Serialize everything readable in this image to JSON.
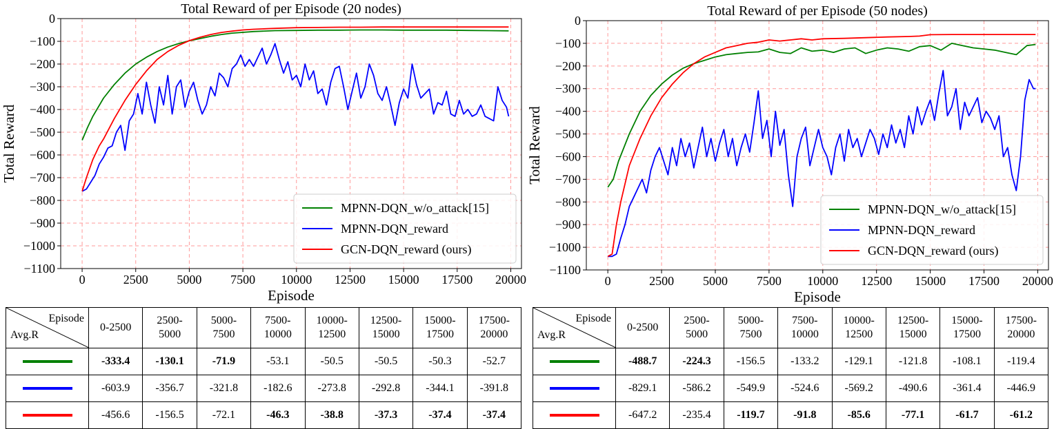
{
  "chart_data": [
    {
      "type": "line",
      "title": "Total Reward of per Episode (20 nodes)",
      "xlabel": "Episode",
      "ylabel": "Total Reward",
      "xlim": [
        -1000,
        20500
      ],
      "ylim": [
        -1100,
        0
      ],
      "xticks": [
        0,
        2500,
        5000,
        7500,
        10000,
        12500,
        15000,
        17500,
        20000
      ],
      "yticks": [
        0,
        -100,
        -200,
        -300,
        -400,
        -500,
        -600,
        -700,
        -800,
        -900,
        -1000,
        -1100
      ],
      "grid": true,
      "legend_position": "lower-right",
      "legend": [
        "MPNN-DQN_w/o_attack[15]",
        "MPNN-DQN_reward",
        "GCN-DQN_reward (ours)"
      ],
      "series": [
        {
          "name": "MPNN-DQN_w/o_attack[15]",
          "color": "#008000",
          "x": [
            0,
            250,
            500,
            1000,
            1500,
            2000,
            2500,
            3000,
            3500,
            4000,
            4500,
            5000,
            5500,
            6000,
            6500,
            7000,
            8000,
            9000,
            10000,
            11000,
            12000,
            13000,
            14000,
            15000,
            16000,
            17000,
            18000,
            19000,
            19900
          ],
          "y": [
            -535,
            -480,
            -430,
            -350,
            -290,
            -240,
            -200,
            -170,
            -145,
            -125,
            -110,
            -98,
            -88,
            -78,
            -70,
            -64,
            -57,
            -53,
            -52,
            -51,
            -51,
            -50,
            -50,
            -51,
            -51,
            -51,
            -52,
            -53,
            -54
          ]
        },
        {
          "name": "MPNN-DQN_reward",
          "color": "#0000ff",
          "x": [
            0,
            200,
            400,
            600,
            800,
            1000,
            1200,
            1400,
            1600,
            1800,
            2000,
            2200,
            2400,
            2600,
            2800,
            3000,
            3200,
            3400,
            3600,
            3800,
            4000,
            4200,
            4400,
            4600,
            4800,
            5000,
            5200,
            5400,
            5600,
            5800,
            6000,
            6200,
            6400,
            6600,
            6800,
            7000,
            7200,
            7400,
            7600,
            7800,
            8000,
            8200,
            8400,
            8600,
            8800,
            9000,
            9200,
            9400,
            9600,
            9800,
            10000,
            10200,
            10400,
            10600,
            10800,
            11000,
            11200,
            11400,
            11600,
            11800,
            12000,
            12200,
            12400,
            12600,
            12800,
            13000,
            13200,
            13400,
            13600,
            13800,
            14000,
            14200,
            14400,
            14600,
            14800,
            15000,
            15200,
            15400,
            15600,
            15800,
            16000,
            16200,
            16400,
            16600,
            16800,
            17000,
            17200,
            17400,
            17600,
            17800,
            18000,
            18200,
            18400,
            18600,
            18800,
            19000,
            19200,
            19400,
            19600,
            19800,
            19900
          ],
          "y": [
            -760,
            -750,
            -720,
            -690,
            -640,
            -610,
            -570,
            -560,
            -500,
            -470,
            -580,
            -450,
            -420,
            -330,
            -420,
            -280,
            -380,
            -460,
            -300,
            -380,
            -250,
            -420,
            -300,
            -270,
            -390,
            -320,
            -280,
            -360,
            -420,
            -380,
            -300,
            -340,
            -240,
            -260,
            -300,
            -220,
            -200,
            -160,
            -210,
            -180,
            -210,
            -170,
            -130,
            -200,
            -160,
            -110,
            -180,
            -240,
            -190,
            -270,
            -250,
            -300,
            -200,
            -270,
            -230,
            -330,
            -310,
            -380,
            -280,
            -220,
            -210,
            -300,
            -400,
            -320,
            -240,
            -350,
            -300,
            -200,
            -250,
            -330,
            -360,
            -300,
            -380,
            -470,
            -370,
            -310,
            -350,
            -200,
            -290,
            -350,
            -330,
            -310,
            -420,
            -370,
            -380,
            -320,
            -420,
            -430,
            -360,
            -420,
            -400,
            -430,
            -420,
            -380,
            -430,
            -440,
            -450,
            -300,
            -360,
            -390,
            -430
          ]
        },
        {
          "name": "GCN-DQN_reward (ours)",
          "color": "#ff0000",
          "x": [
            0,
            200,
            500,
            800,
            1000,
            1500,
            2000,
            2500,
            3000,
            3500,
            4000,
            4500,
            5000,
            5500,
            6000,
            6500,
            7000,
            7500,
            8000,
            9000,
            10000,
            11000,
            12000,
            13000,
            14000,
            15000,
            16000,
            17000,
            18000,
            19000,
            19900
          ],
          "y": [
            -760,
            -700,
            -620,
            -560,
            -530,
            -440,
            -360,
            -290,
            -230,
            -180,
            -145,
            -118,
            -97,
            -82,
            -70,
            -61,
            -55,
            -50,
            -47,
            -43,
            -40,
            -39,
            -38,
            -38,
            -37,
            -37,
            -37,
            -37,
            -37,
            -37,
            -37
          ]
        }
      ]
    },
    {
      "type": "line",
      "title": "Total Reward of per Episode (50 nodes)",
      "xlabel": "Episode",
      "ylabel": "Total Reward",
      "xlim": [
        -1000,
        20500
      ],
      "ylim": [
        -1100,
        0
      ],
      "xticks": [
        0,
        2500,
        5000,
        7500,
        10000,
        12500,
        15000,
        17500,
        20000
      ],
      "yticks": [
        0,
        -100,
        -200,
        -300,
        -400,
        -500,
        -600,
        -700,
        -800,
        -900,
        -1000,
        -1100
      ],
      "grid": true,
      "legend_position": "lower-right",
      "legend": [
        "MPNN-DQN_w/o_attack[15]",
        "MPNN-DQN_reward",
        "GCN-DQN_reward (ours)"
      ],
      "series": [
        {
          "name": "MPNN-DQN_w/o_attack[15]",
          "color": "#008000",
          "x": [
            0,
            250,
            500,
            1000,
            1500,
            2000,
            2500,
            3000,
            3500,
            4000,
            4500,
            5000,
            5500,
            6000,
            6500,
            7000,
            7500,
            8000,
            8500,
            9000,
            9500,
            10000,
            10500,
            11000,
            11500,
            12000,
            12500,
            13000,
            13500,
            14000,
            14500,
            15000,
            15500,
            16000,
            16500,
            17000,
            17500,
            18000,
            18500,
            19000,
            19500,
            19900
          ],
          "y": [
            -735,
            -700,
            -620,
            -500,
            -400,
            -330,
            -280,
            -240,
            -210,
            -190,
            -175,
            -160,
            -150,
            -145,
            -140,
            -138,
            -125,
            -140,
            -145,
            -120,
            -135,
            -130,
            -140,
            -125,
            -120,
            -145,
            -130,
            -120,
            -125,
            -135,
            -115,
            -110,
            -130,
            -100,
            -110,
            -120,
            -125,
            -130,
            -140,
            -150,
            -110,
            -105
          ]
        },
        {
          "name": "MPNN-DQN_reward",
          "color": "#0000ff",
          "x": [
            0,
            200,
            400,
            600,
            800,
            1000,
            1200,
            1400,
            1600,
            1800,
            2000,
            2200,
            2400,
            2600,
            2800,
            3000,
            3200,
            3400,
            3600,
            3800,
            4000,
            4200,
            4400,
            4600,
            4800,
            5000,
            5200,
            5400,
            5600,
            5800,
            6000,
            6200,
            6400,
            6600,
            6800,
            7000,
            7200,
            7400,
            7600,
            7800,
            8000,
            8200,
            8400,
            8600,
            8800,
            9000,
            9200,
            9400,
            9600,
            9800,
            10000,
            10200,
            10400,
            10600,
            10800,
            11000,
            11200,
            11400,
            11600,
            11800,
            12000,
            12200,
            12400,
            12600,
            12800,
            13000,
            13200,
            13400,
            13600,
            13800,
            14000,
            14200,
            14400,
            14600,
            14800,
            15000,
            15200,
            15400,
            15600,
            15800,
            16000,
            16200,
            16400,
            16600,
            16800,
            17000,
            17200,
            17400,
            17600,
            17800,
            18000,
            18200,
            18400,
            18600,
            18800,
            19000,
            19200,
            19400,
            19600,
            19800,
            19900
          ],
          "y": [
            -1040,
            -1040,
            -1030,
            -960,
            -900,
            -820,
            -780,
            -740,
            -700,
            -760,
            -660,
            -600,
            -560,
            -620,
            -680,
            -560,
            -640,
            -520,
            -600,
            -540,
            -650,
            -560,
            -470,
            -600,
            -520,
            -620,
            -540,
            -480,
            -600,
            -520,
            -640,
            -560,
            -500,
            -580,
            -450,
            -310,
            -520,
            -440,
            -600,
            -400,
            -550,
            -480,
            -680,
            -820,
            -600,
            -520,
            -470,
            -640,
            -560,
            -480,
            -560,
            -600,
            -680,
            -560,
            -500,
            -620,
            -480,
            -560,
            -520,
            -600,
            -540,
            -480,
            -520,
            -590,
            -500,
            -560,
            -460,
            -540,
            -480,
            -560,
            -420,
            -500,
            -380,
            -460,
            -400,
            -350,
            -440,
            -320,
            -220,
            -420,
            -380,
            -300,
            -480,
            -360,
            -420,
            -380,
            -340,
            -450,
            -400,
            -430,
            -480,
            -420,
            -600,
            -560,
            -680,
            -750,
            -600,
            -350,
            -260,
            -300,
            -300
          ]
        },
        {
          "name": "GCN-DQN_reward (ours)",
          "color": "#ff0000",
          "x": [
            0,
            200,
            400,
            600,
            800,
            1000,
            1500,
            2000,
            2500,
            3000,
            3500,
            4000,
            4500,
            5000,
            5500,
            6000,
            6500,
            7000,
            7500,
            8000,
            8500,
            9000,
            9500,
            10000,
            11000,
            12000,
            13000,
            14000,
            14500,
            15000,
            16000,
            17000,
            18000,
            19000,
            19900
          ],
          "y": [
            -1040,
            -1030,
            -900,
            -800,
            -720,
            -640,
            -520,
            -420,
            -340,
            -280,
            -230,
            -190,
            -160,
            -140,
            -120,
            -110,
            -100,
            -95,
            -85,
            -90,
            -85,
            -80,
            -85,
            -80,
            -78,
            -75,
            -72,
            -70,
            -68,
            -62,
            -61,
            -61,
            -61,
            -61,
            -61
          ]
        }
      ]
    }
  ],
  "tables": [
    {
      "corner_top": "Episode",
      "corner_bottom": "Avg.R",
      "columns": [
        "0-2500",
        "2500-\n5000",
        "5000-\n7500",
        "7500-\n10000",
        "10000-\n12500",
        "12500-\n15000",
        "15000-\n17500",
        "17500-\n20000"
      ],
      "rows": [
        {
          "color": "#008000",
          "values": [
            "-333.4",
            "-130.1",
            "-71.9",
            "-53.1",
            "-50.5",
            "-50.5",
            "-50.3",
            "-52.7"
          ],
          "bold": [
            true,
            true,
            true,
            false,
            false,
            false,
            false,
            false
          ]
        },
        {
          "color": "#0000ff",
          "values": [
            "-603.9",
            "-356.7",
            "-321.8",
            "-182.6",
            "-273.8",
            "-292.8",
            "-344.1",
            "-391.8"
          ],
          "bold": [
            false,
            false,
            false,
            false,
            false,
            false,
            false,
            false
          ]
        },
        {
          "color": "#ff0000",
          "values": [
            "-456.6",
            "-156.5",
            "-72.1",
            "-46.3",
            "-38.8",
            "-37.3",
            "-37.4",
            "-37.4"
          ],
          "bold": [
            false,
            false,
            false,
            true,
            true,
            true,
            true,
            true
          ]
        }
      ]
    },
    {
      "corner_top": "Episode",
      "corner_bottom": "Avg.R",
      "columns": [
        "0-2500",
        "2500-\n5000",
        "5000-\n7500",
        "7500-\n10000",
        "10000-\n12500",
        "12500-\n15000",
        "15000-\n17500",
        "17500-\n20000"
      ],
      "rows": [
        {
          "color": "#008000",
          "values": [
            "-488.7",
            "-224.3",
            "-156.5",
            "-133.2",
            "-129.1",
            "-121.8",
            "-108.1",
            "-119.4"
          ],
          "bold": [
            true,
            true,
            false,
            false,
            false,
            false,
            false,
            false
          ]
        },
        {
          "color": "#0000ff",
          "values": [
            "-829.1",
            "-586.2",
            "-549.9",
            "-524.6",
            "-569.2",
            "-490.6",
            "-361.4",
            "-446.9"
          ],
          "bold": [
            false,
            false,
            false,
            false,
            false,
            false,
            false,
            false
          ]
        },
        {
          "color": "#ff0000",
          "values": [
            "-647.2",
            "-235.4",
            "-119.7",
            "-91.8",
            "-85.6",
            "-77.1",
            "-61.7",
            "-61.2"
          ],
          "bold": [
            false,
            false,
            true,
            true,
            true,
            true,
            true,
            true
          ]
        }
      ]
    }
  ]
}
